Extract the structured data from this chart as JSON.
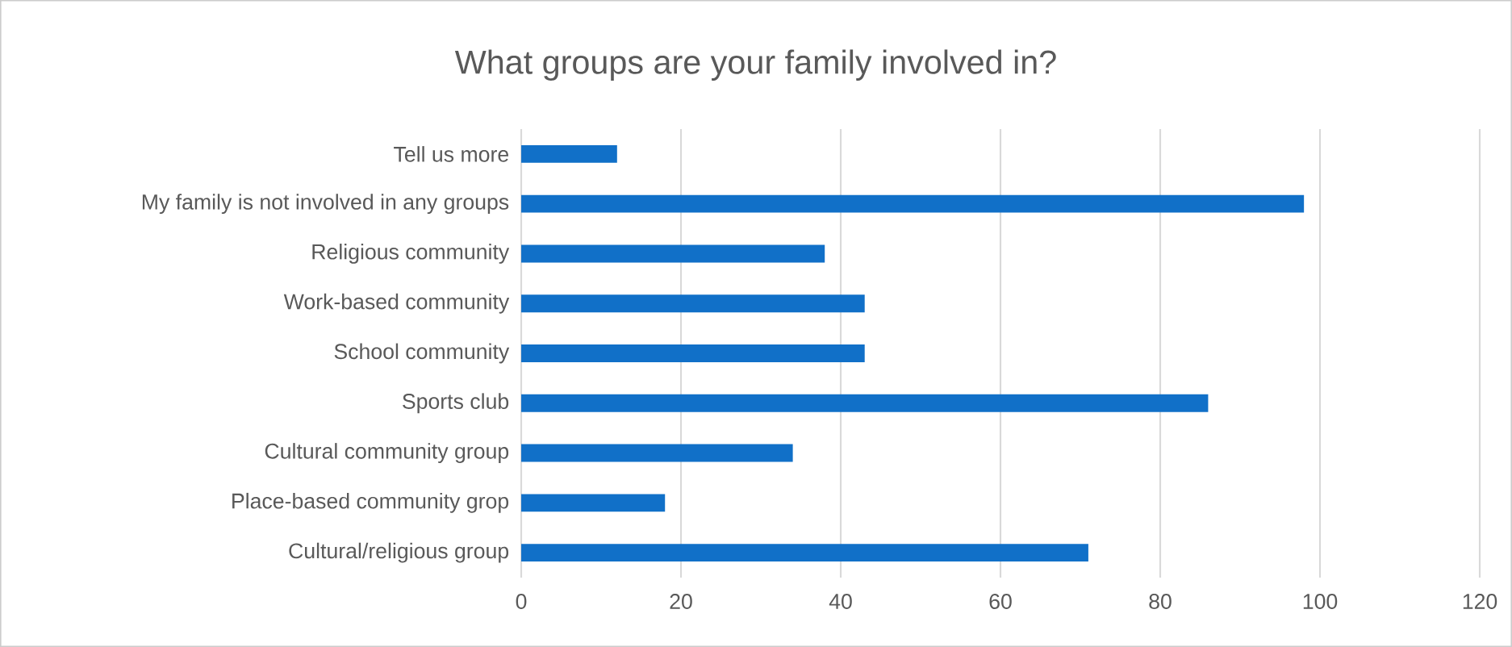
{
  "chart_data": {
    "type": "bar",
    "orientation": "horizontal",
    "title": "What groups are your family involved in?",
    "categories": [
      "Tell us more",
      "My family is not involved in any groups",
      "Religious community",
      "Work-based community",
      "School community",
      "Sports club",
      "Cultural community group",
      "Place-based community grop",
      "Cultural/religious group"
    ],
    "values": [
      12,
      98,
      38,
      43,
      43,
      86,
      34,
      18,
      71
    ],
    "color": "#1170c8",
    "xlim": [
      0,
      120
    ],
    "xticks": [
      0,
      20,
      40,
      60,
      80,
      100,
      120
    ],
    "grid": "x"
  }
}
